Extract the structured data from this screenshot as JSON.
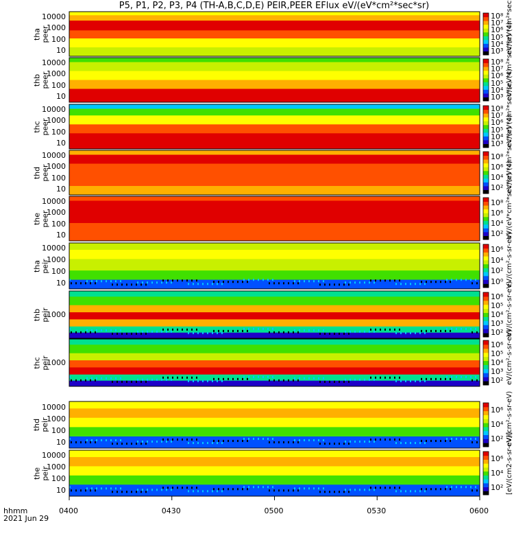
{
  "page_title": "P5, P1, P2, P3, P4 (TH-A,B,C,D,E) PEIR,PEER EFlux eV/(eV*cm²*sec*sr)",
  "time_axis": {
    "row1": "hhmm",
    "row2": "2021 Jun 29",
    "ticks": [
      "0400",
      "0430",
      "0500",
      "0530",
      "0600"
    ]
  },
  "colors": {
    "colormap": [
      "#000000",
      "#1e00c8",
      "#0050ff",
      "#00c8ff",
      "#00e090",
      "#40e000",
      "#c8f000",
      "#ffff00",
      "#ffb000",
      "#ff5000",
      "#e00000"
    ],
    "missing_bar": "#ff0000"
  },
  "panels": [
    {
      "probe": "tha",
      "dataset": "peer",
      "ylabels": [
        "10000",
        "1000",
        "100",
        "10"
      ],
      "colorbar": [
        "10⁸",
        "10⁷",
        "10⁶",
        "10⁵",
        "10⁴",
        "10³"
      ],
      "unit": "eV/(eV*cm²*sec*sr) (4)"
    },
    {
      "probe": "thb",
      "dataset": "peer",
      "ylabels": [
        "10000",
        "1000",
        "100",
        "10"
      ],
      "colorbar": [
        "10⁸",
        "10⁷",
        "10⁶",
        "10⁵",
        "10⁴",
        "10³"
      ],
      "unit": "eV/(eV*cm²*sec*sr) (4)"
    },
    {
      "probe": "thc",
      "dataset": "peer",
      "ylabels": [
        "10000",
        "1000",
        "100",
        "10"
      ],
      "colorbar": [
        "10⁸",
        "10⁷",
        "10⁶",
        "10⁵",
        "10⁴",
        "10³"
      ],
      "unit": "eV/(eV*cm²*sec*sr) (4)"
    },
    {
      "probe": "thd",
      "dataset": "peer",
      "ylabels": [
        "10000",
        "1000",
        "100",
        "10"
      ],
      "colorbar": [
        "10⁸",
        "10⁶",
        "10⁴",
        "10²"
      ],
      "unit": "eV/(eV*cm²*sec*sr) (4)"
    },
    {
      "probe": "the",
      "dataset": "peer",
      "ylabels": [
        "10000",
        "1000",
        "100",
        "10"
      ],
      "colorbar": [
        "10⁸",
        "10⁶",
        "10⁴",
        "10²"
      ],
      "unit": "eV/(eV*cm²*sec*sr) (4)"
    },
    {
      "probe": "tha",
      "dataset": "peir",
      "ylabels": [
        "10000",
        "1000",
        "100",
        "10"
      ],
      "colorbar": [
        "10⁶",
        "10⁴",
        "10²",
        "10⁰"
      ],
      "unit": "eV/(cm²-s-sr-eV)"
    },
    {
      "probe": "thb",
      "dataset": "peir",
      "ylabels": [
        "1000"
      ],
      "colorbar": [
        "10⁶",
        "10⁵",
        "10⁴",
        "10³",
        "10²"
      ],
      "unit": "eV/(cm²-s-sr-eV)"
    },
    {
      "probe": "thc",
      "dataset": "peir",
      "ylabels": [
        "1000"
      ],
      "colorbar": [
        "10⁶",
        "10⁵",
        "10⁴",
        "10³",
        "10²"
      ],
      "unit": "eV/(cm²-s-sr-eV)"
    },
    {
      "probe": "thd",
      "dataset": "peir",
      "ylabels": [
        "10000",
        "1000",
        "100",
        "10"
      ],
      "colorbar": [
        "10⁶",
        "10⁴",
        "10²"
      ],
      "unit": "eV/(cm²-s-sr-eV)"
    },
    {
      "probe": "the",
      "dataset": "peir",
      "ylabels": [
        "10000",
        "1000",
        "100",
        "10"
      ],
      "colorbar": [
        "10⁶",
        "10⁴",
        "10²"
      ],
      "unit": "[eV/(cm2-s-sr-eV)]"
    }
  ],
  "chart_data": {
    "type": "heatmap",
    "title": "P5, P1, P2, P3, P4 (TH-A,B,C,D,E) PEIR,PEER EFlux eV/(eV*cm²*sec*sr)",
    "xlabel": "hhmm",
    "x_ticks": [
      "0400",
      "0430",
      "0500",
      "0530",
      "0600"
    ],
    "date": "2021 Jun 29",
    "xlim": [
      "04:00",
      "06:00"
    ],
    "ylabel_unit": "eV (energy, log scale)",
    "panels": [
      {
        "name": "tha peer",
        "ylim": [
          7,
          25000
        ],
        "yscale": "log",
        "cbar_range": [
          1000,
          100000000
        ]
      },
      {
        "name": "thb peer",
        "ylim": [
          7,
          25000
        ],
        "yscale": "log",
        "cbar_range": [
          1000,
          100000000
        ]
      },
      {
        "name": "thc peer",
        "ylim": [
          7,
          25000
        ],
        "yscale": "log",
        "cbar_range": [
          1000,
          100000000
        ]
      },
      {
        "name": "thd peer",
        "ylim": [
          7,
          25000
        ],
        "yscale": "log",
        "cbar_range": [
          100,
          100000000
        ]
      },
      {
        "name": "the peer",
        "ylim": [
          7,
          25000
        ],
        "yscale": "log",
        "cbar_range": [
          100,
          100000000
        ]
      },
      {
        "name": "tha peir",
        "ylim": [
          7,
          25000
        ],
        "yscale": "log",
        "cbar_range": [
          1,
          1000000
        ]
      },
      {
        "name": "thb peir",
        "ylim": [
          100,
          10000
        ],
        "yscale": "log",
        "cbar_range": [
          100,
          1000000
        ]
      },
      {
        "name": "thc peir",
        "ylim": [
          100,
          10000
        ],
        "yscale": "log",
        "cbar_range": [
          100,
          1000000
        ]
      },
      {
        "name": "thd peir",
        "ylim": [
          7,
          25000
        ],
        "yscale": "log",
        "cbar_range": [
          10,
          1000000
        ]
      },
      {
        "name": "the peir",
        "ylim": [
          7,
          25000
        ],
        "yscale": "log",
        "cbar_range": [
          10,
          1000000
        ]
      }
    ]
  }
}
